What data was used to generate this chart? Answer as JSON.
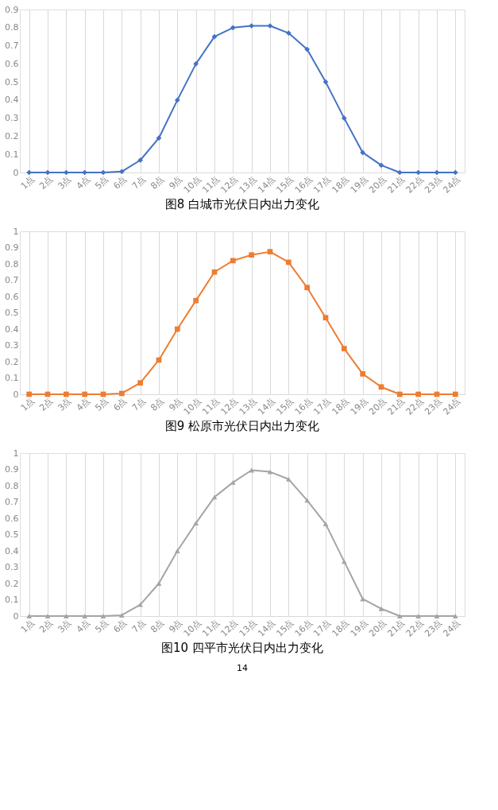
{
  "chart_data": [
    {
      "type": "line",
      "title": "图8    白城市光伏日内出力变化",
      "categories": [
        "1点",
        "2点",
        "3点",
        "4点",
        "5点",
        "6点",
        "7点",
        "8点",
        "9点",
        "10点",
        "11点",
        "12点",
        "13点",
        "14点",
        "15点",
        "16点",
        "17点",
        "18点",
        "19点",
        "20点",
        "21点",
        "22点",
        "23点",
        "24点"
      ],
      "series": [
        {
          "color": "#4472c4",
          "values": [
            0,
            0,
            0,
            0,
            0,
            0.005,
            0.068,
            0.19,
            0.4,
            0.6,
            0.75,
            0.8,
            0.81,
            0.81,
            0.77,
            0.68,
            0.5,
            0.3,
            0.11,
            0.04,
            0,
            0,
            0,
            0
          ]
        }
      ],
      "ylim": [
        0,
        0.9
      ],
      "yticks": [
        0,
        0.1,
        0.2,
        0.3,
        0.4,
        0.5,
        0.6,
        0.7,
        0.8,
        0.9
      ],
      "grid": "x",
      "marker": "diamond",
      "line_style": "solid"
    },
    {
      "type": "line",
      "title": "图9    松原市光伏日内出力变化",
      "categories": [
        "1点",
        "2点",
        "3点",
        "4点",
        "5点",
        "6点",
        "7点",
        "8点",
        "9点",
        "10点",
        "11点",
        "12点",
        "13点",
        "14点",
        "15点",
        "16点",
        "17点",
        "18点",
        "19点",
        "20点",
        "21点",
        "22点",
        "23点",
        "24点"
      ],
      "series": [
        {
          "color": "#ed7d31",
          "values": [
            0,
            0,
            0,
            0,
            0,
            0.005,
            0.07,
            0.21,
            0.4,
            0.575,
            0.75,
            0.82,
            0.855,
            0.875,
            0.81,
            0.655,
            0.47,
            0.28,
            0.125,
            0.045,
            0,
            0,
            0,
            0
          ]
        }
      ],
      "ylim": [
        0,
        1
      ],
      "yticks": [
        0,
        0.1,
        0.2,
        0.3,
        0.4,
        0.5,
        0.6,
        0.7,
        0.8,
        0.9,
        1
      ],
      "grid": "x",
      "marker": "square",
      "line_style": "solid"
    },
    {
      "type": "line",
      "title": "图10    四平市光伏日内出力变化",
      "categories": [
        "1点",
        "2点",
        "3点",
        "4点",
        "5点",
        "6点",
        "7点",
        "8点",
        "9点",
        "10点",
        "11点",
        "12点",
        "13点",
        "14点",
        "15点",
        "16点",
        "17点",
        "18点",
        "19点",
        "20点",
        "21点",
        "22点",
        "23点",
        "24点"
      ],
      "series": [
        {
          "color": "#a5a5a5",
          "values": [
            0,
            0,
            0,
            0,
            0,
            0.005,
            0.07,
            0.2,
            0.4,
            0.57,
            0.73,
            0.82,
            0.895,
            0.885,
            0.84,
            0.71,
            0.565,
            0.335,
            0.105,
            0.045,
            0,
            0,
            0,
            0
          ]
        }
      ],
      "ylim": [
        0,
        1
      ],
      "yticks": [
        0,
        0.1,
        0.2,
        0.3,
        0.4,
        0.5,
        0.6,
        0.7,
        0.8,
        0.9,
        1
      ],
      "grid": "x",
      "marker": "triangle",
      "line_style": "solid",
      "annotations": [
        "14"
      ]
    }
  ]
}
